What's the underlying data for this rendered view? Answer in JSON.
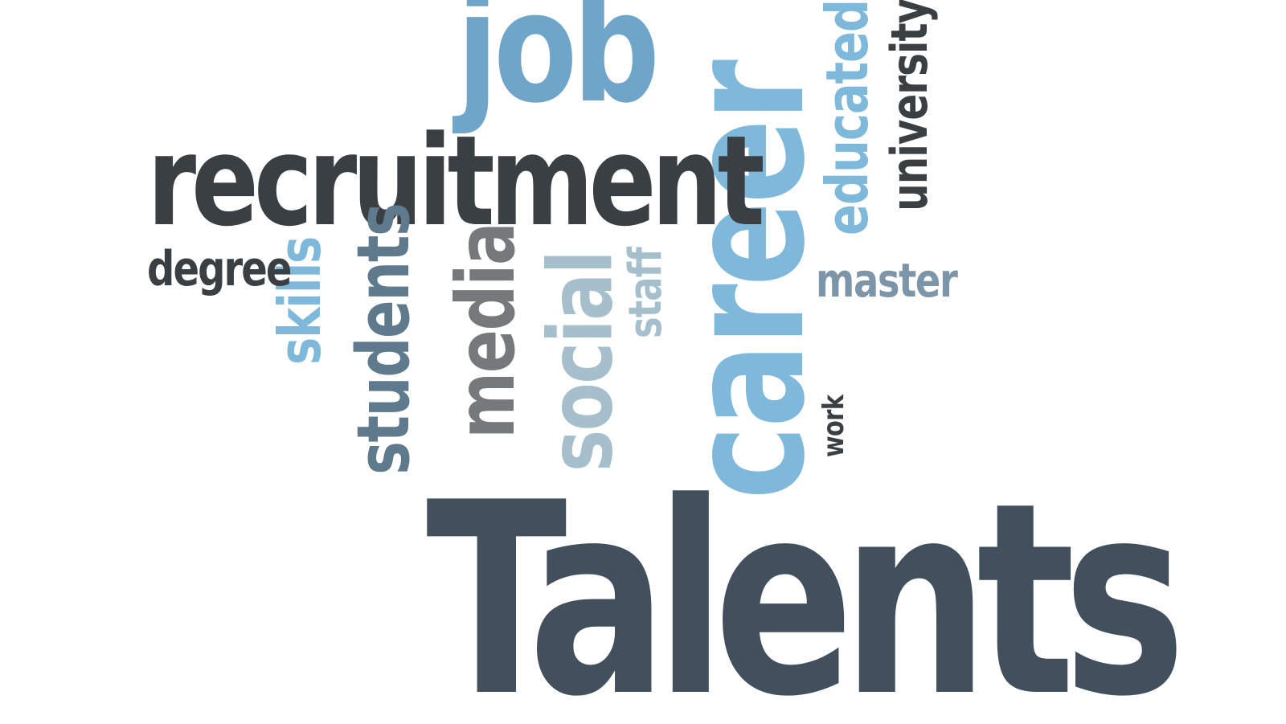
{
  "words": {
    "talents": "Talents",
    "career": "career",
    "recruitment": "recruitment",
    "job": "job",
    "social": "social",
    "media": "media",
    "students": "students",
    "skills": "skills",
    "staff": "staff",
    "degree": "degree",
    "educated": "educated",
    "university": "university",
    "master": "master",
    "work": "work"
  },
  "colors": {
    "dark_slate": "#41505c",
    "charcoal": "#3a3f44",
    "sky_blue": "#7eb9dc",
    "steel_blue": "#6fa5c8",
    "grey": "#76797b",
    "pale_blue_grey": "#a6bfcd",
    "slate_blue": "#5e7a8c",
    "muted_blue": "#7c95a8"
  }
}
